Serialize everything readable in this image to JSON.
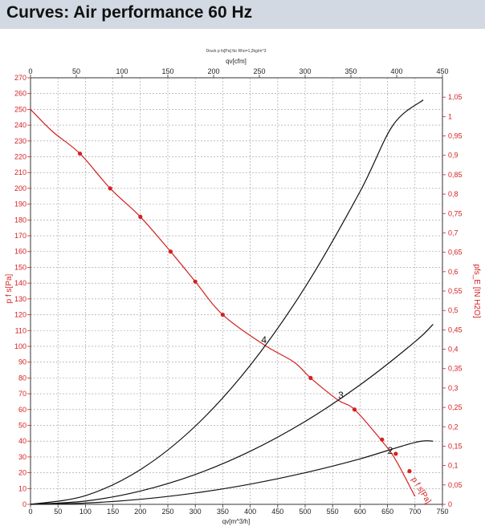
{
  "header": {
    "title": "Curves: Air performance 60 Hz"
  },
  "chart_data": {
    "type": "line",
    "note_text": "Druck p fs[Pa] für Rho=1,2kg/m^3",
    "xlabel": "qv[m^3/h]",
    "x2label": "qv[cfm]",
    "ylabel": "p f s[Pa]",
    "y2label": "pfs_E [IN H2O]",
    "xlim": [
      0,
      750
    ],
    "ylim": [
      0,
      270
    ],
    "x2lim": [
      0,
      450
    ],
    "y2lim": [
      0,
      1.1
    ],
    "grid": true,
    "x_ticks": [
      "0",
      "50",
      "100",
      "150",
      "200",
      "250",
      "300",
      "350",
      "400",
      "450",
      "500",
      "550",
      "600",
      "650",
      "700",
      "750"
    ],
    "x2_ticks": [
      "0",
      "50",
      "100",
      "150",
      "200",
      "250",
      "300",
      "350",
      "400",
      "450"
    ],
    "y_ticks": [
      "0",
      "10",
      "20",
      "30",
      "40",
      "50",
      "60",
      "70",
      "80",
      "90",
      "100",
      "110",
      "120",
      "130",
      "140",
      "150",
      "160",
      "170",
      "180",
      "190",
      "200",
      "210",
      "220",
      "230",
      "240",
      "250",
      "260",
      "270"
    ],
    "y2_ticks": [
      "0",
      "0,05",
      "0,1",
      "0,15",
      "0,2",
      "0,25",
      "0,3",
      "0,35",
      "0,4",
      "0,45",
      "0,5",
      "0,55",
      "0,6",
      "0,65",
      "0,7",
      "0,75",
      "0,8",
      "0,85",
      "0,9",
      "0,95",
      "1",
      "1,05"
    ],
    "series": [
      {
        "name": "p f s[Pa]",
        "color": "#d42020",
        "label": "p f s[Pa]",
        "x": [
          0,
          40,
          90,
          145,
          200,
          255,
          300,
          350,
          425,
          480,
          510,
          560,
          590,
          640,
          665,
          700
        ],
        "y": [
          250,
          236,
          222,
          200,
          182,
          160,
          141,
          120,
          101,
          90,
          80,
          66,
          60,
          40,
          28,
          5
        ],
        "markers_x": [
          90,
          145,
          200,
          255,
          300,
          350,
          510,
          590,
          640,
          665,
          690
        ],
        "markers_y": [
          222,
          200,
          182,
          160,
          141,
          120,
          80,
          60,
          41,
          32,
          21
        ]
      },
      {
        "name": "4",
        "color": "#111111",
        "label": "4",
        "x": [
          0,
          100,
          200,
          300,
          400,
          500,
          600,
          660,
          715
        ],
        "y": [
          0,
          5.5,
          22,
          49.5,
          88,
          137.5,
          198,
          240,
          256
        ]
      },
      {
        "name": "3",
        "color": "#111111",
        "label": "3",
        "x": [
          0,
          100,
          200,
          300,
          400,
          500,
          600,
          700,
          733
        ],
        "y": [
          0,
          2.1,
          8.4,
          18.9,
          33.6,
          52.5,
          75.6,
          102.9,
          114
        ]
      },
      {
        "name": "2",
        "color": "#111111",
        "label": "2",
        "x": [
          0,
          100,
          200,
          300,
          400,
          500,
          600,
          700,
          733
        ],
        "y": [
          0,
          0.8,
          3.2,
          7.2,
          12.8,
          20,
          28.8,
          39.2,
          40
        ]
      }
    ],
    "operating_points": [
      {
        "label": "4",
        "x": 425,
        "y": 101
      },
      {
        "label": "3",
        "x": 565,
        "y": 66
      },
      {
        "label": "2",
        "x": 655,
        "y": 31
      }
    ]
  }
}
